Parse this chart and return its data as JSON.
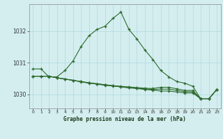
{
  "title": "Graphe pression niveau de la mer (hPa)",
  "bg_color": "#d4eef0",
  "grid_color": "#b0d8dc",
  "line_color": "#2d6a2d",
  "xlim": [
    -0.5,
    23.5
  ],
  "ylim": [
    1029.55,
    1032.85
  ],
  "yticks": [
    1030,
    1031,
    1032
  ],
  "xticks": [
    0,
    1,
    2,
    3,
    4,
    5,
    6,
    7,
    8,
    9,
    10,
    11,
    12,
    13,
    14,
    15,
    16,
    17,
    18,
    19,
    20,
    21,
    22,
    23
  ],
  "line1_x": [
    0,
    1,
    2,
    3,
    4,
    5,
    6,
    7,
    8,
    9,
    10,
    11,
    12,
    13,
    14,
    15,
    16,
    17,
    18,
    19,
    20,
    21,
    22,
    23
  ],
  "line1_y": [
    1030.8,
    1030.8,
    1030.55,
    1030.55,
    1030.75,
    1031.05,
    1031.5,
    1031.85,
    1032.05,
    1032.15,
    1032.4,
    1032.6,
    1032.05,
    1031.75,
    1031.4,
    1031.1,
    1030.75,
    1030.55,
    1030.4,
    1030.35,
    1030.25,
    1029.85,
    1029.85,
    1030.15
  ],
  "line2_x": [
    0,
    1,
    2,
    3,
    4,
    5,
    6,
    7,
    8,
    9,
    10,
    11,
    12,
    13,
    14,
    15,
    16,
    17,
    18,
    19,
    20,
    21,
    22,
    23
  ],
  "line2_y": [
    1030.57,
    1030.57,
    1030.57,
    1030.52,
    1030.48,
    1030.44,
    1030.4,
    1030.36,
    1030.33,
    1030.3,
    1030.27,
    1030.25,
    1030.23,
    1030.21,
    1030.19,
    1030.18,
    1030.22,
    1030.22,
    1030.17,
    1030.12,
    1030.12,
    1029.85,
    1029.85,
    1030.15
  ],
  "line3_x": [
    0,
    1,
    2,
    3,
    4,
    5,
    6,
    7,
    8,
    9,
    10,
    11,
    12,
    13,
    14,
    15,
    16,
    17,
    18,
    19,
    20,
    21,
    22,
    23
  ],
  "line3_y": [
    1030.57,
    1030.57,
    1030.57,
    1030.52,
    1030.48,
    1030.44,
    1030.4,
    1030.36,
    1030.33,
    1030.3,
    1030.27,
    1030.24,
    1030.22,
    1030.19,
    1030.17,
    1030.15,
    1030.16,
    1030.16,
    1030.12,
    1030.08,
    1030.08,
    1029.85,
    1029.85,
    1030.15
  ],
  "line4_x": [
    0,
    1,
    2,
    3,
    4,
    5,
    6,
    7,
    8,
    9,
    10,
    11,
    12,
    13,
    14,
    15,
    16,
    17,
    18,
    19,
    20,
    21,
    22,
    23
  ],
  "line4_y": [
    1030.57,
    1030.57,
    1030.57,
    1030.52,
    1030.48,
    1030.44,
    1030.39,
    1030.35,
    1030.32,
    1030.28,
    1030.26,
    1030.23,
    1030.2,
    1030.18,
    1030.15,
    1030.13,
    1030.1,
    1030.1,
    1030.07,
    1030.04,
    1030.04,
    1029.85,
    1029.85,
    1030.15
  ]
}
